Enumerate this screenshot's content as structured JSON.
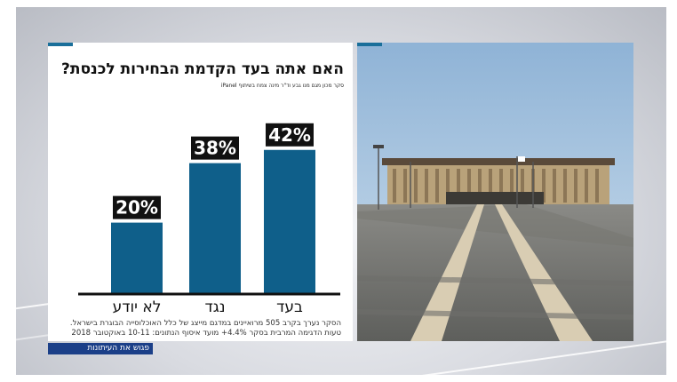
{
  "title": "האם אתה בעד הקדמת הבחירות לכנסת?",
  "source_note": "סקר מכון מגם מנו גבע וד\"ר מינה צמח בשיתוף iPanel",
  "footnote_line1": "הסקר נערך בקרב 505 מרואיינים במדגם מייצג של כלל האוכלוסייה הבוגרת בישראל.",
  "footnote_line2": "טעות הדגימה המרבית בסקר 4.4%+ מועד איסוף הנתונים: 10-11 באוקטובר 2018",
  "ticker_label": "פגוש את העיתונות",
  "colors": {
    "bar": "#0f5f8a",
    "label_bg": "#111111",
    "accent": "#1a6f9a",
    "ticker": "#1b3f88"
  },
  "chart_data": {
    "type": "bar",
    "categories": [
      "לא יודע",
      "נגד",
      "בעד"
    ],
    "values": [
      20,
      38,
      42
    ],
    "value_labels": [
      "20%",
      "38%",
      "42%"
    ],
    "title": "האם אתה בעד הקדמת הבחירות לכנסת?",
    "ylim": [
      0,
      50
    ],
    "grid": false,
    "legend": "none"
  }
}
